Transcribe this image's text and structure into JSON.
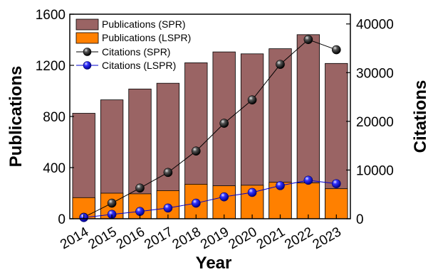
{
  "chart_data": {
    "type": "bar",
    "categories": [
      "2014",
      "2015",
      "2016",
      "2017",
      "2018",
      "2019",
      "2020",
      "2021",
      "2022",
      "2023"
    ],
    "xlabel": "Year",
    "ylabel_left": "Publications",
    "ylabel_right": "Citations",
    "ylim_left": [
      0,
      1600
    ],
    "ylim_right": [
      0,
      42000
    ],
    "yticks_left": [
      "0",
      "400",
      "800",
      "1200",
      "1600"
    ],
    "yticks_right": [
      "0",
      "10000",
      "20000",
      "30000",
      "40000"
    ],
    "yticks_left_values": [
      0,
      400,
      800,
      1200,
      1600
    ],
    "yticks_right_values": [
      0,
      10000,
      20000,
      30000,
      40000
    ],
    "legend_position": "top-left",
    "grid": false,
    "bar_series": [
      {
        "name": "Publications (SPR)",
        "color": "#9a6464",
        "values": [
          825,
          930,
          1015,
          1060,
          1220,
          1305,
          1290,
          1330,
          1440,
          1215
        ]
      },
      {
        "name": "Publications (LSPR)",
        "color": "#ff8000",
        "values": [
          165,
          200,
          195,
          220,
          270,
          258,
          262,
          285,
          280,
          235
        ]
      }
    ],
    "line_series": [
      {
        "name": "Citations (SPR)",
        "color": "#000000",
        "marker": "black-sphere",
        "values": [
          300,
          3200,
          6300,
          9500,
          13900,
          19600,
          24400,
          31700,
          36800,
          34700
        ]
      },
      {
        "name": "Citations (LSPR)",
        "color": "#0000cc",
        "marker": "blue-sphere",
        "values": [
          250,
          900,
          1500,
          2200,
          3200,
          4500,
          5400,
          6800,
          7900,
          7200
        ]
      }
    ]
  }
}
